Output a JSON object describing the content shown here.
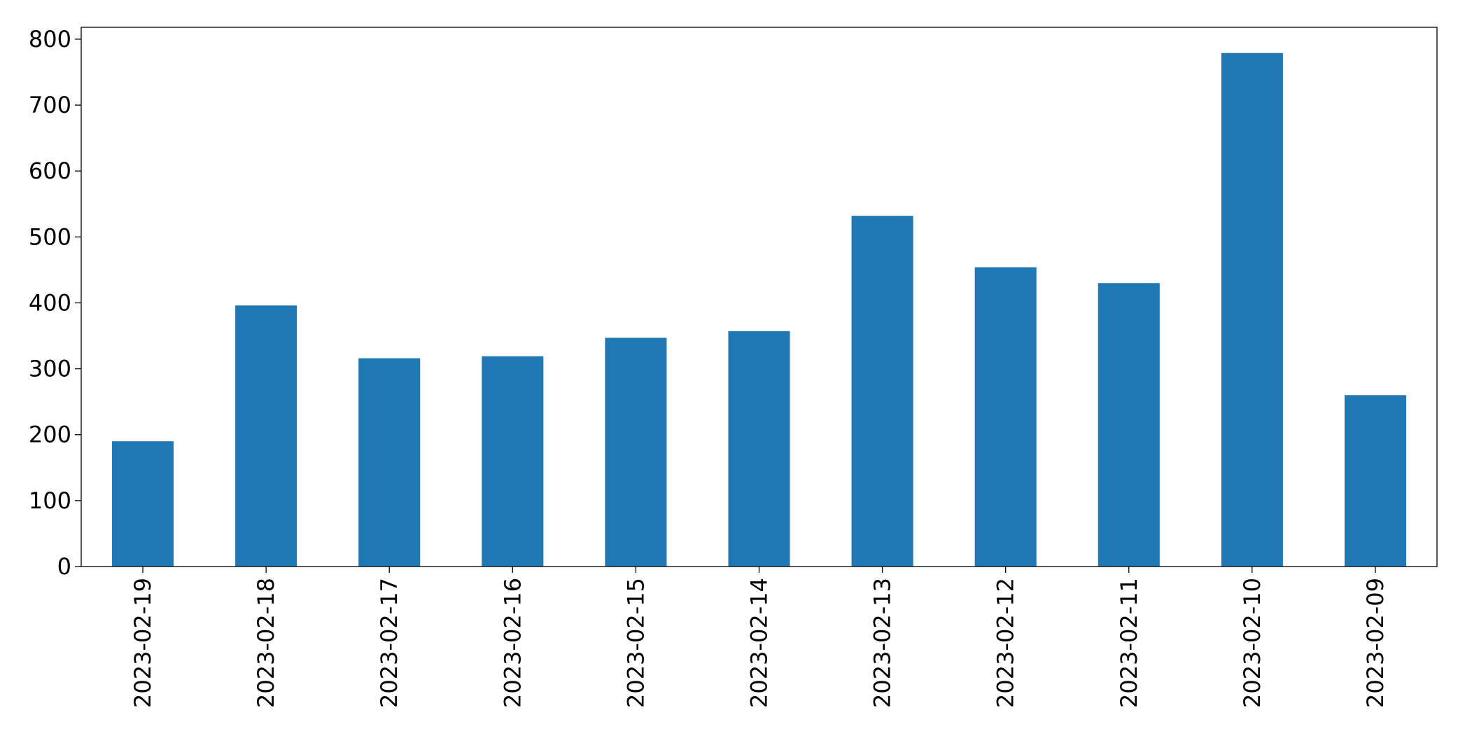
{
  "chart_data": {
    "type": "bar",
    "categories": [
      "2023-02-19",
      "2023-02-18",
      "2023-02-17",
      "2023-02-16",
      "2023-02-15",
      "2023-02-14",
      "2023-02-13",
      "2023-02-12",
      "2023-02-11",
      "2023-02-10",
      "2023-02-09"
    ],
    "values": [
      190,
      396,
      316,
      319,
      347,
      357,
      532,
      454,
      430,
      779,
      260
    ],
    "color": "#1f77b4",
    "ylim": [
      0,
      818
    ],
    "yticks": [
      0,
      100,
      200,
      300,
      400,
      500,
      600,
      700,
      800
    ],
    "grid": false
  }
}
